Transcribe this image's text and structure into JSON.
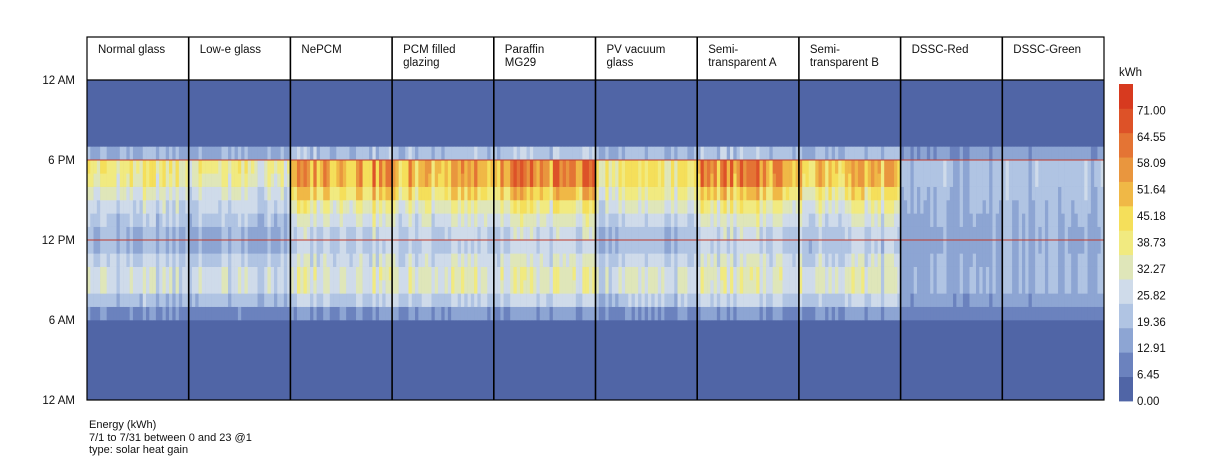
{
  "chart_data": {
    "type": "heatmap",
    "title": "Energy (kWh)",
    "subtitle": "7/1 to 7/31 between 0 and 23 @1",
    "metric": "type: solar heat gain",
    "x_unit": "day of July (1–31) within each panel",
    "y_unit": "hour of day",
    "y_ticks": [
      "12 AM",
      "6 PM",
      "12 PM",
      "6 AM",
      "12 AM"
    ],
    "panels": [
      "Normal glass",
      "Low-e glass",
      "NePCM",
      "PCM filled glazing",
      "Paraffin MG29",
      "PV vacuum glass",
      "Semi-transparent A",
      "Semi-transparent B",
      "DSSC-Red",
      "DSSC-Green"
    ],
    "panel_labels": [
      [
        "Normal glass"
      ],
      [
        "Low-e glass"
      ],
      [
        "NePCM"
      ],
      [
        "PCM filled",
        "glazing"
      ],
      [
        "Paraffin",
        "MG29"
      ],
      [
        "PV vacuum",
        "glass"
      ],
      [
        "Semi-",
        "transparent A"
      ],
      [
        "Semi-",
        "transparent B"
      ],
      [
        "DSSC-Red"
      ],
      [
        "DSSC-Green"
      ]
    ],
    "hours": [
      0,
      1,
      2,
      3,
      4,
      5,
      6,
      7,
      8,
      9,
      10,
      11,
      12,
      13,
      14,
      15,
      16,
      17,
      18,
      19,
      20,
      21,
      22,
      23
    ],
    "hourly_profile_kwh": {
      "Normal glass": [
        0,
        0,
        0,
        0,
        0,
        0,
        12,
        22,
        30,
        30,
        26,
        20,
        20,
        24,
        28,
        33,
        40,
        42,
        19,
        0,
        0,
        0,
        0,
        0
      ],
      "Low-e glass": [
        0,
        0,
        0,
        0,
        0,
        0,
        11,
        21,
        29,
        29,
        25,
        19,
        19,
        23,
        27,
        31,
        37,
        39,
        18,
        0,
        0,
        0,
        0,
        0
      ],
      "NePCM": [
        0,
        0,
        0,
        0,
        0,
        0,
        14,
        26,
        34,
        35,
        31,
        27,
        28,
        33,
        40,
        50,
        60,
        60,
        23,
        0,
        0,
        0,
        0,
        0
      ],
      "PCM filled glazing": [
        0,
        0,
        0,
        0,
        0,
        0,
        14,
        26,
        34,
        34,
        30,
        26,
        27,
        32,
        38,
        47,
        55,
        56,
        22,
        0,
        0,
        0,
        0,
        0
      ],
      "Paraffin MG29": [
        0,
        0,
        0,
        0,
        0,
        0,
        14,
        26,
        34,
        35,
        31,
        27,
        28,
        33,
        40,
        50,
        62,
        62,
        23,
        0,
        0,
        0,
        0,
        0
      ],
      "PV vacuum glass": [
        0,
        0,
        0,
        0,
        0,
        0,
        12,
        23,
        31,
        31,
        27,
        22,
        22,
        27,
        32,
        38,
        44,
        44,
        20,
        0,
        0,
        0,
        0,
        0
      ],
      "Semi-transparent A": [
        0,
        0,
        0,
        0,
        0,
        0,
        14,
        26,
        34,
        35,
        31,
        27,
        28,
        33,
        40,
        50,
        62,
        63,
        23,
        0,
        0,
        0,
        0,
        0
      ],
      "Semi-transparent B": [
        0,
        0,
        0,
        0,
        0,
        0,
        14,
        25,
        33,
        33,
        29,
        24,
        25,
        30,
        36,
        44,
        52,
        53,
        21,
        0,
        0,
        0,
        0,
        0
      ],
      "DSSC-Red": [
        0,
        0,
        0,
        0,
        0,
        0,
        9,
        15,
        19,
        19,
        18,
        17,
        17,
        18,
        20,
        21,
        22,
        22,
        14,
        0,
        0,
        0,
        0,
        0
      ],
      "DSSC-Green": [
        0,
        0,
        0,
        0,
        0,
        0,
        9,
        16,
        20,
        20,
        19,
        18,
        18,
        19,
        21,
        22,
        23,
        23,
        15,
        0,
        0,
        0,
        0,
        0
      ]
    },
    "markers": [
      {
        "hour": 12,
        "color": "#c0392b"
      },
      {
        "hour": 18,
        "color": "#c0392b"
      }
    ],
    "legend": {
      "title": "kWh",
      "position": "right",
      "ticks": [
        "71.00",
        "64.55",
        "58.09",
        "51.64",
        "45.18",
        "38.73",
        "32.27",
        "25.82",
        "19.36",
        "12.91",
        "6.45",
        "0.00"
      ],
      "min": 0,
      "max": 77.45,
      "colors": [
        "#5065a6",
        "#6b82be",
        "#8da5d3",
        "#b0c4e3",
        "#cfdbea",
        "#dfe6b9",
        "#f1ea80",
        "#f5df5a",
        "#f0b846",
        "#e9963e",
        "#e47434",
        "#dd5228",
        "#d73a1f"
      ]
    }
  }
}
